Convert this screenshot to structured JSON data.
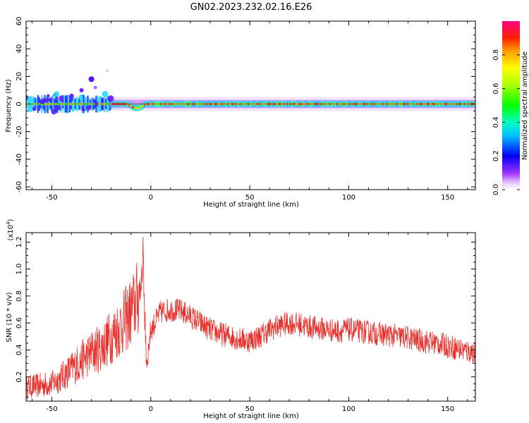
{
  "figure_title": "GN02.2023.232.02.16.E26",
  "colors": {
    "snr_line": "#e8302c",
    "axes": "#000000",
    "center_line": "#555555"
  },
  "chart_data": [
    {
      "type": "heatmap",
      "title": "",
      "xlabel": "Height of straight line (km)",
      "ylabel": "Frequency (Hz)",
      "xlim": [
        -63,
        164
      ],
      "ylim": [
        -62,
        60
      ],
      "xticks": [
        -50,
        0,
        50,
        100,
        150
      ],
      "yticks": [
        60,
        40,
        20,
        0,
        -20,
        -40,
        -60
      ],
      "grid": false,
      "colorbar": {
        "label": "Normalized spectral amplitude",
        "range": [
          0,
          1
        ],
        "ticks": [
          "0.0",
          "0.2",
          "0.4",
          "0.6",
          "0.8"
        ],
        "colormap": "rainbow (violet-blue-cyan-green-yellow-red-magenta)"
      }
    },
    {
      "type": "line",
      "title": "",
      "xlabel": "Height of straight line (km)",
      "ylabel": "SNR (10 * v/v)",
      "y_scale_label": "(x10",
      "y_scale_exponent": "4",
      "y_scale_close": ")",
      "xlim": [
        -63,
        164
      ],
      "ylim": [
        0.02,
        1.27
      ],
      "xticks": [
        -50,
        0,
        50,
        100,
        150
      ],
      "yticks": [
        0.2,
        0.4,
        0.6,
        0.8,
        1.0,
        1.2
      ],
      "ytick_labels": [
        "0.2",
        "0.4",
        "0.6",
        "0.8",
        "1.0",
        "1.2"
      ],
      "grid": false,
      "series": [
        {
          "x": [
            -63,
            -60,
            -55,
            -50,
            -45,
            -40,
            -35,
            -30,
            -25,
            -20,
            -15,
            -10,
            -6,
            -4,
            -3,
            -2,
            0,
            5,
            10,
            15,
            20,
            25,
            30,
            35,
            40,
            45,
            50,
            55,
            60,
            65,
            70,
            75,
            80,
            85,
            90,
            95,
            100,
            105,
            110,
            115,
            120,
            125,
            130,
            135,
            140,
            145,
            150,
            155,
            160,
            164
          ],
          "y": [
            0.12,
            0.13,
            0.14,
            0.15,
            0.2,
            0.26,
            0.32,
            0.38,
            0.42,
            0.5,
            0.58,
            0.68,
            0.8,
            1.0,
            0.45,
            0.3,
            0.55,
            0.68,
            0.7,
            0.69,
            0.65,
            0.6,
            0.55,
            0.52,
            0.5,
            0.48,
            0.47,
            0.5,
            0.55,
            0.58,
            0.6,
            0.59,
            0.57,
            0.56,
            0.55,
            0.54,
            0.55,
            0.54,
            0.53,
            0.52,
            0.51,
            0.5,
            0.49,
            0.47,
            0.46,
            0.45,
            0.43,
            0.41,
            0.39,
            0.38
          ]
        }
      ]
    }
  ]
}
